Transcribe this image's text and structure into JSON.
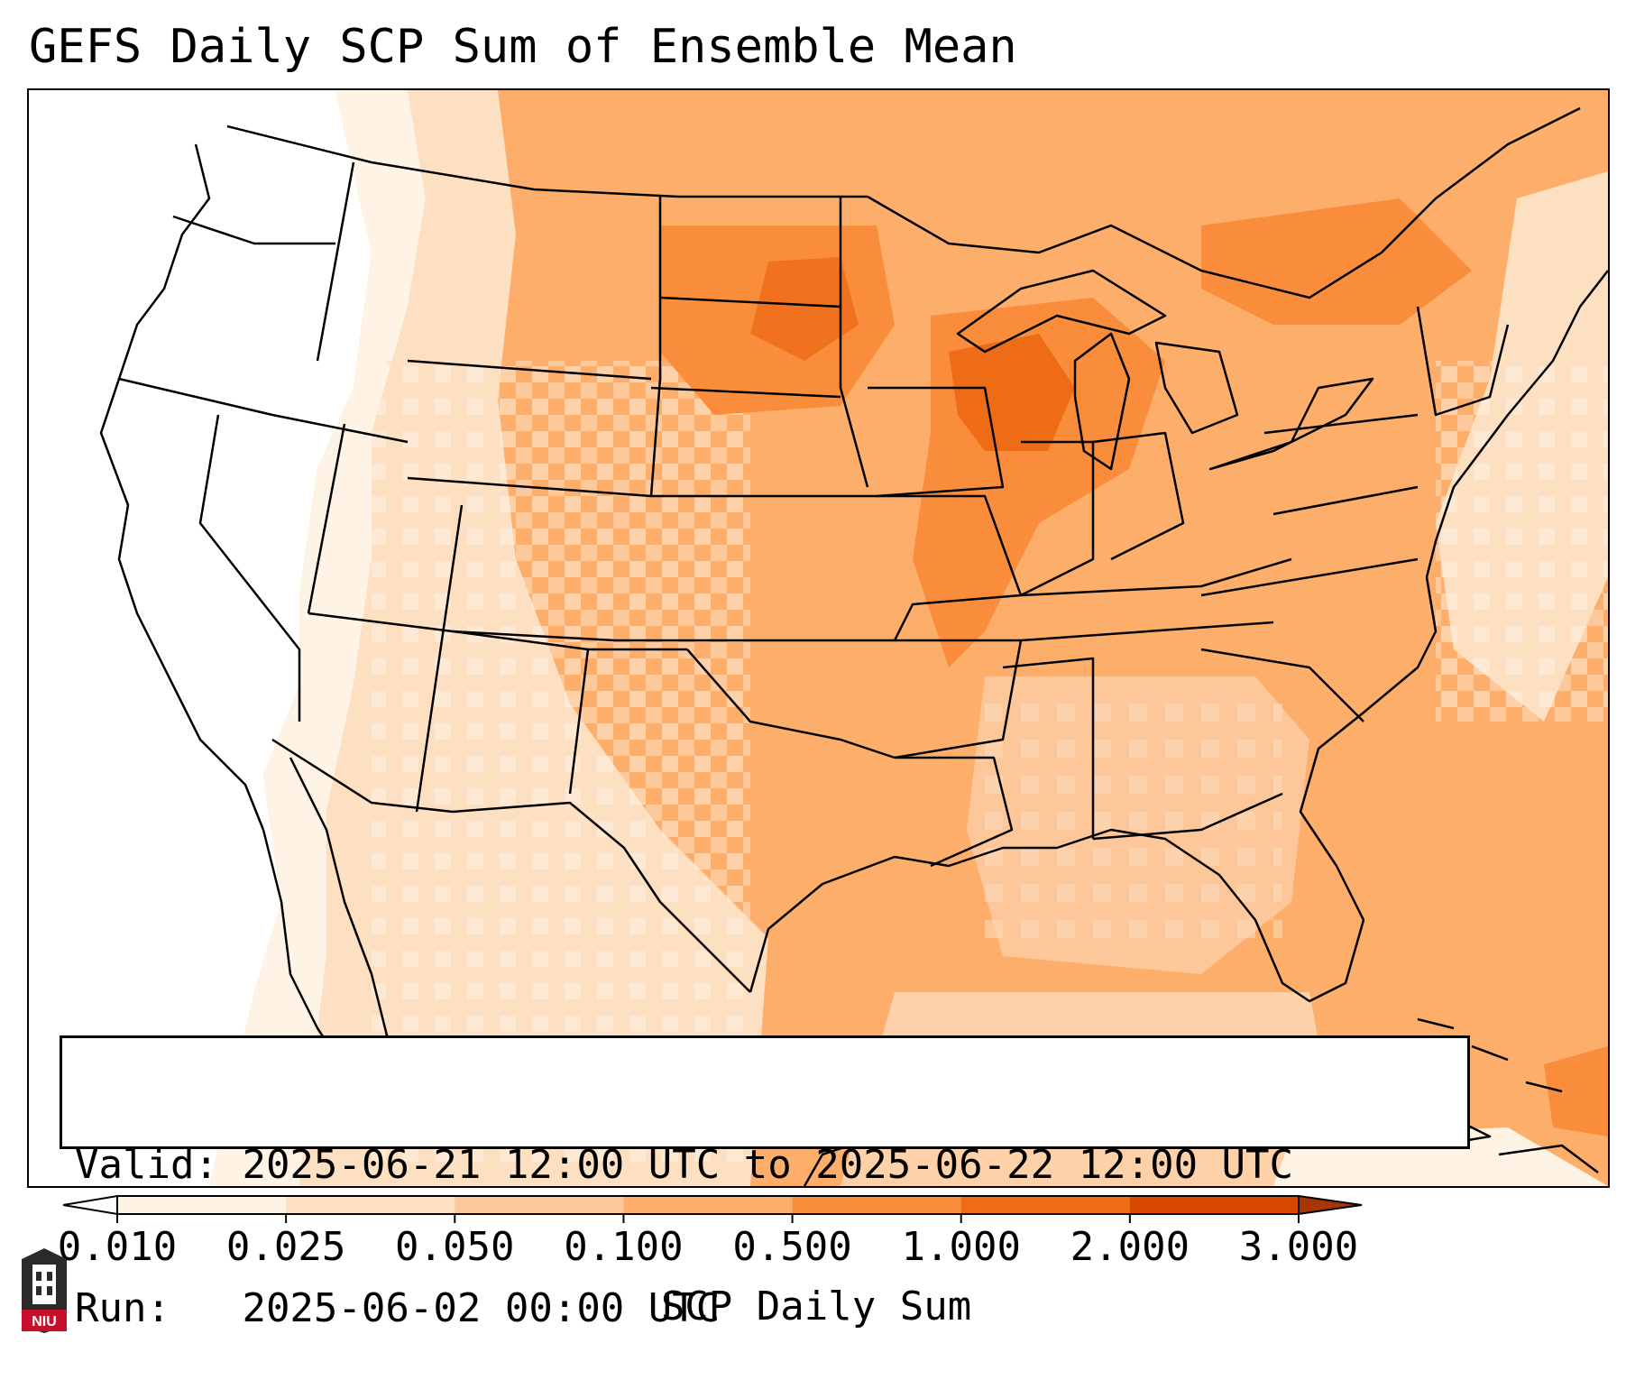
{
  "title": "GEFS Daily SCP Sum of Ensemble Mean",
  "info": {
    "valid_label": "Valid:",
    "valid_value": "2025-06-21 12:00 UTC to 2025-06-22 12:00 UTC",
    "run_label": "Run:",
    "run_value": "2025-06-02 00:00 UTC"
  },
  "colorbar": {
    "label": "SCP Daily Sum",
    "ticks": [
      "0.010",
      "0.025",
      "0.050",
      "0.100",
      "0.500",
      "1.000",
      "2.000",
      "3.000"
    ],
    "colors": [
      "#fff3e6",
      "#fddfc2",
      "#fdc79a",
      "#fdae6b",
      "#f98d3c",
      "#ef6c17",
      "#d94801",
      "#a63603"
    ],
    "extend": "both"
  },
  "map": {
    "region": "Contiguous United States",
    "field": "SCP daily sum, ensemble mean",
    "colors": {
      "background_low": "#ffffff",
      "lightest": "#fff3e6",
      "light": "#fddfc2",
      "medium_light": "#fdc79a",
      "medium": "#fdae6b",
      "dark": "#f98d3c",
      "darker": "#ef6c17"
    }
  },
  "logo": {
    "text": "NIU",
    "icon": "niu-building-logo"
  }
}
